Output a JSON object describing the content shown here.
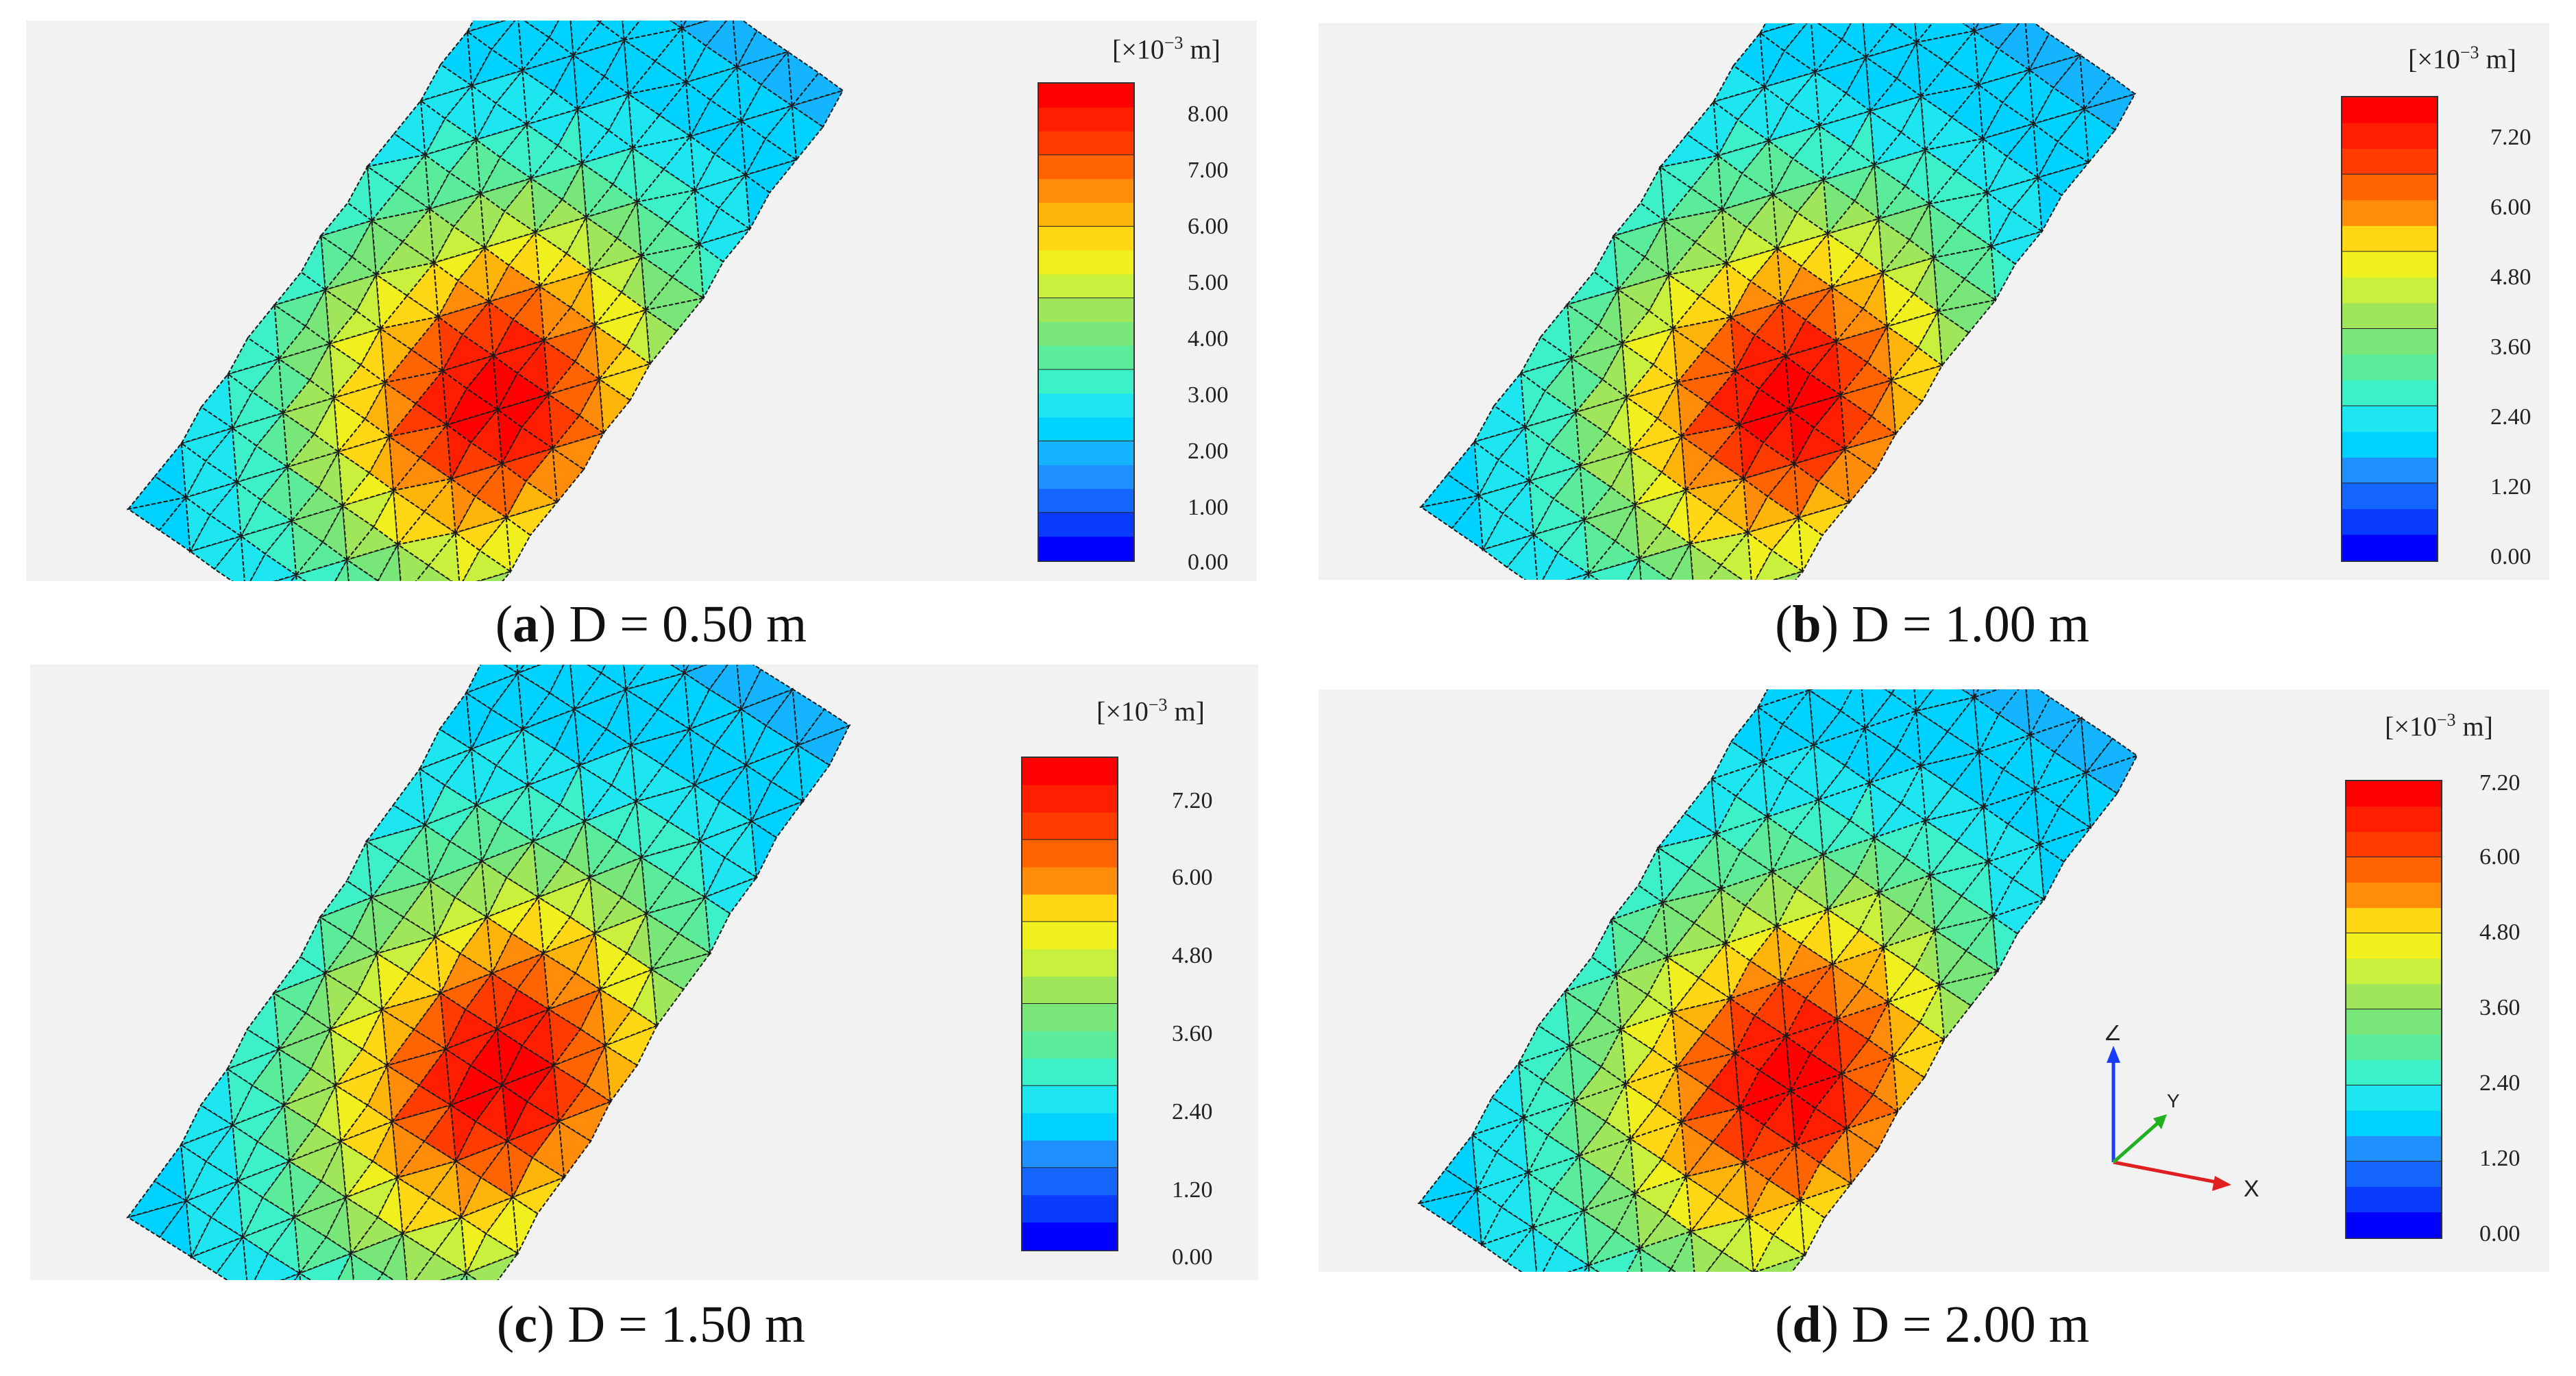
{
  "panels": [
    {
      "id": "a",
      "letter": "a",
      "caption": "D = 0.50 m",
      "legend_title_pre": "[×10",
      "legend_title_exp": "−3",
      "legend_title_post": " m]",
      "ticks": [
        "8.00",
        "7.00",
        "6.00",
        "5.00",
        "4.00",
        "3.00",
        "2.00",
        "1.00",
        "0.00"
      ],
      "peak_value": 8.0
    },
    {
      "id": "b",
      "letter": "b",
      "caption": "D = 1.00 m",
      "legend_title_pre": "[×10",
      "legend_title_exp": "−3",
      "legend_title_post": " m]",
      "ticks": [
        "7.20",
        "6.00",
        "4.80",
        "3.60",
        "2.40",
        "1.20",
        "0.00"
      ],
      "peak_value": 7.2
    },
    {
      "id": "c",
      "letter": "c",
      "caption": "D = 1.50 m",
      "legend_title_pre": "[×10",
      "legend_title_exp": "−3",
      "legend_title_post": " m]",
      "ticks": [
        "7.20",
        "6.00",
        "4.80",
        "3.60",
        "2.40",
        "1.20",
        "0.00"
      ],
      "peak_value": 7.2
    },
    {
      "id": "d",
      "letter": "d",
      "caption": "D = 2.00 m",
      "legend_title_pre": "[×10",
      "legend_title_exp": "−3",
      "legend_title_post": " m]",
      "ticks": [
        "7.20",
        "6.00",
        "4.80",
        "3.60",
        "2.40",
        "1.20",
        "0.00"
      ],
      "peak_value": 7.2
    }
  ],
  "axis_triad": {
    "z": "Z",
    "y": "Y",
    "x": "X"
  },
  "colors": {
    "scale": [
      "#0000ff",
      "#0a3cff",
      "#1466ff",
      "#1e90ff",
      "#14b4ff",
      "#00d2ff",
      "#1ee6f0",
      "#3cf0c8",
      "#5aeb9b",
      "#78e678",
      "#a0e65a",
      "#c8f03c",
      "#f0f01e",
      "#ffd714",
      "#ffb40a",
      "#ff8c0a",
      "#ff6400",
      "#ff3c00",
      "#ff1e00",
      "#ff0000"
    ],
    "background": "#f2f2f2",
    "mesh": "#1a1a1a"
  }
}
